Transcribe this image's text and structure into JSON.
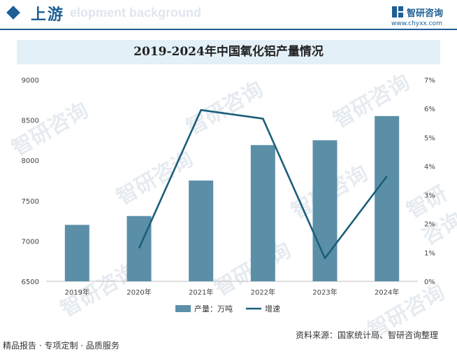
{
  "header": {
    "section_title": "上游",
    "section_bg_text": "elopment background",
    "logo_name": "智研咨询",
    "logo_url": "www.chyxx.com"
  },
  "chart_title": "2019-2024年中国氧化铝产量情况",
  "watermark_text": "智研咨询",
  "footer": {
    "left": "精品报告 · 专项定制 · 品质服务",
    "source": "资料来源：国家统计局、智研咨询整理"
  },
  "colors": {
    "brand": "#1d5f96",
    "bar": "#5b8fa8",
    "line": "#1b5f7a",
    "title_bg": "#e3f0f8"
  },
  "chart_data": {
    "type": "bar",
    "categories": [
      "2019年",
      "2020年",
      "2021年",
      "2022年",
      "2023年",
      "2024年"
    ],
    "series": [
      {
        "name": "产量：万吨",
        "type": "bar",
        "axis": "left",
        "values": [
          7200,
          7310,
          7750,
          8190,
          8250,
          8550
        ]
      },
      {
        "name": "增速",
        "type": "line",
        "axis": "right",
        "values": [
          null,
          1.15,
          5.95,
          5.65,
          0.8,
          3.65
        ]
      }
    ],
    "y_left": {
      "min": 6500,
      "max": 9000,
      "ticks": [
        "6500",
        "7000",
        "7500",
        "8000",
        "8500",
        "9000"
      ]
    },
    "y_right": {
      "min": 0,
      "max": 7,
      "ticks": [
        "0%",
        "1%",
        "2%",
        "3%",
        "4%",
        "5%",
        "6%",
        "7%"
      ]
    },
    "legend_position": "bottom",
    "grid": false
  }
}
